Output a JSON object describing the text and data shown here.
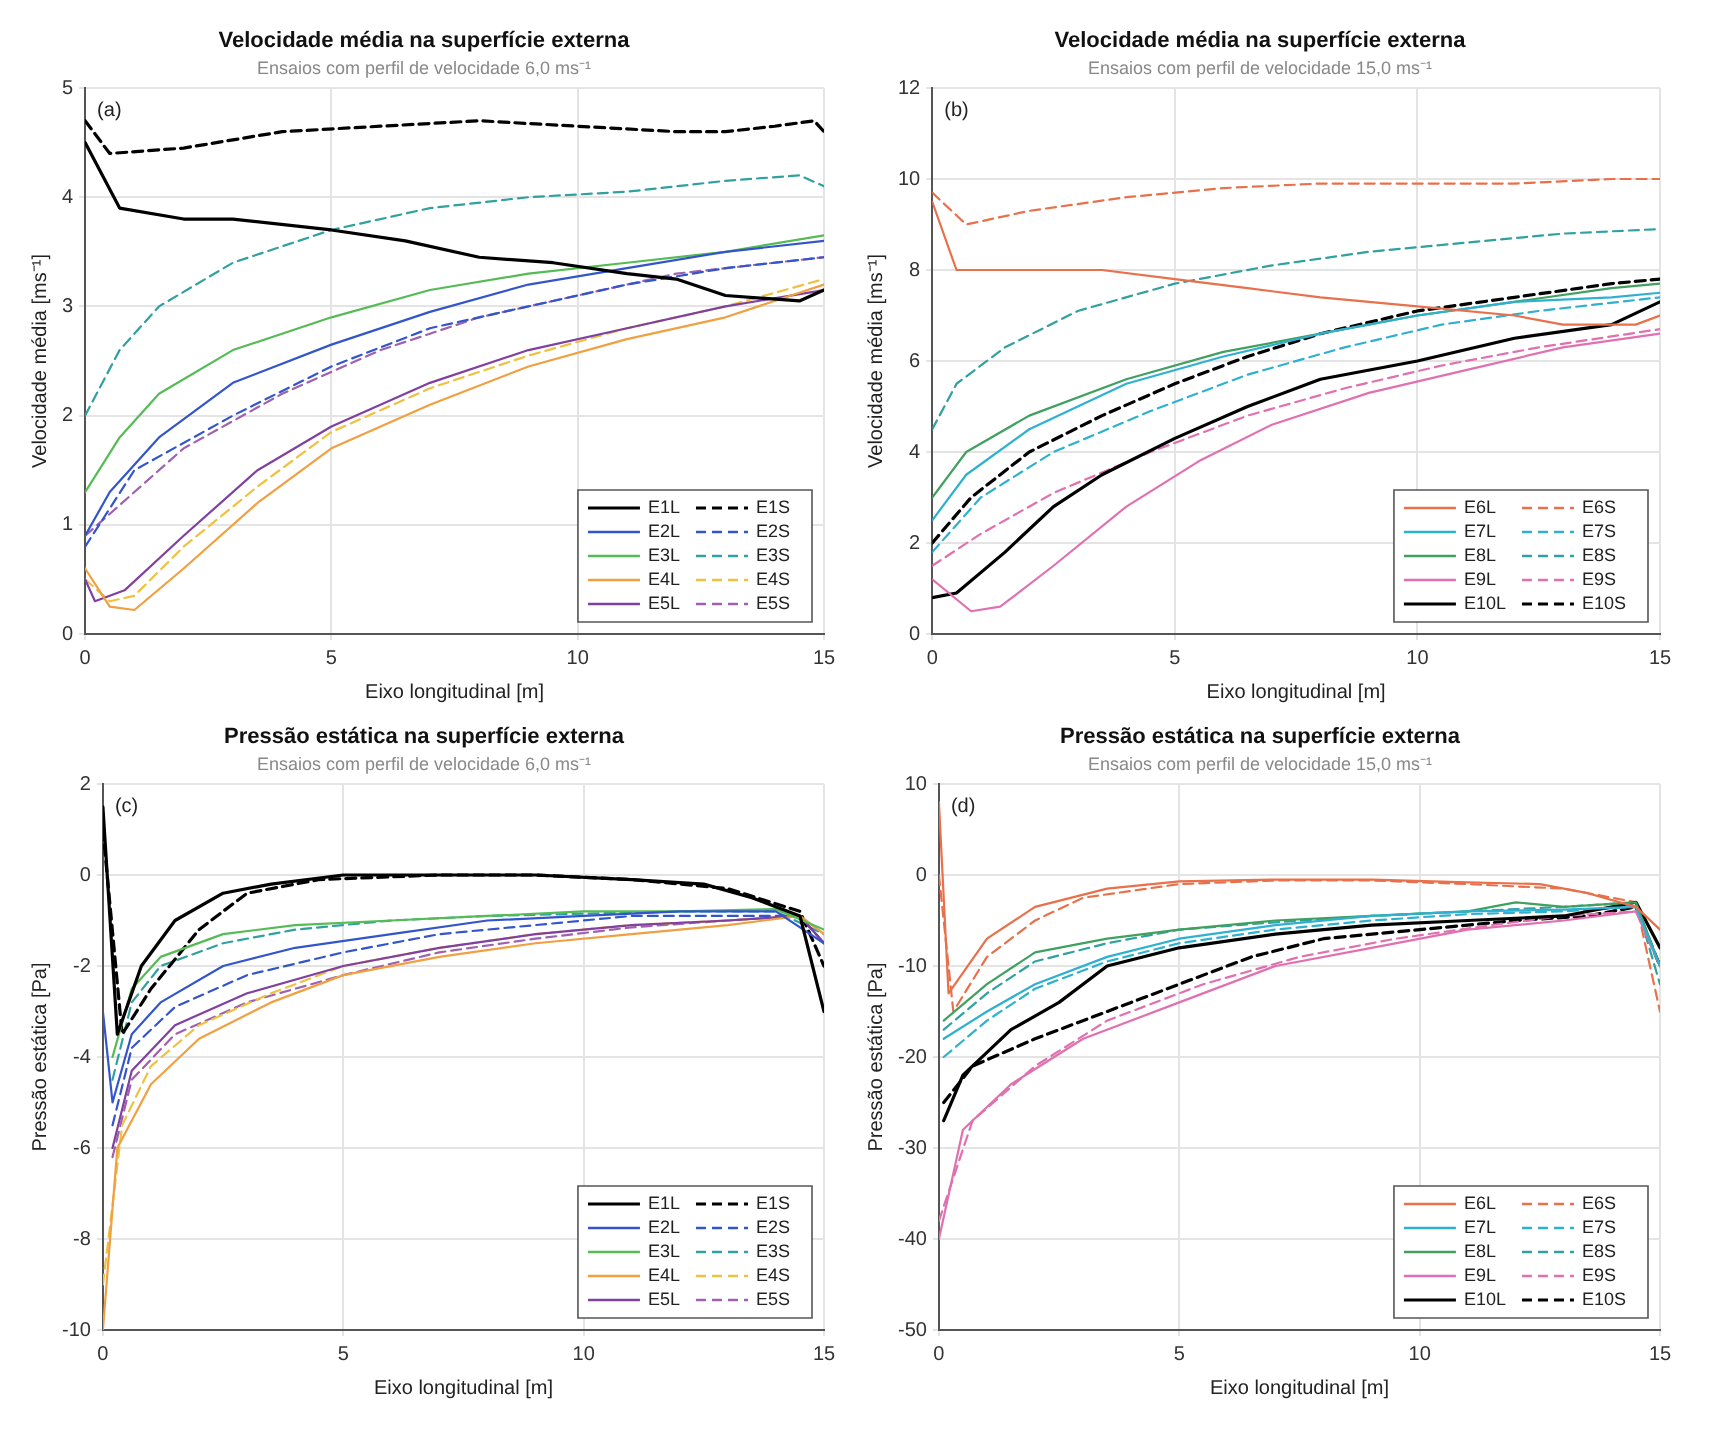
{
  "chart_data": [
    {
      "type": "line",
      "title": "Velocidade média na superfície externa",
      "subtitle": "Ensaios com perfil de velocidade 6,0 ms⁻¹",
      "xlabel": "Eixo longitudinal [m]",
      "ylabel": "Velocidade média [ms⁻¹]",
      "annotations": [
        "(a)"
      ],
      "xlim": [
        0,
        15
      ],
      "xticks": [
        0,
        5,
        10,
        15
      ],
      "ylim": [
        0,
        5
      ],
      "yticks": [
        0,
        1,
        2,
        3,
        4,
        5
      ],
      "grid": true,
      "legend": "bottom right",
      "series": [
        {
          "name": "E1L",
          "color": "#000000",
          "line_style": "solid",
          "x": [
            0,
            0.7,
            2,
            3,
            5,
            6.5,
            8,
            9.5,
            11,
            12,
            13,
            14.5,
            15
          ],
          "values": [
            4.5,
            3.9,
            3.8,
            3.8,
            3.7,
            3.6,
            3.45,
            3.4,
            3.3,
            3.25,
            3.1,
            3.05,
            3.15
          ]
        },
        {
          "name": "E2L",
          "color": "#3355cc",
          "line_style": "solid",
          "x": [
            0,
            0.5,
            1.5,
            3,
            5,
            7,
            9,
            11,
            13,
            15
          ],
          "values": [
            0.9,
            1.3,
            1.8,
            2.3,
            2.65,
            2.95,
            3.2,
            3.35,
            3.5,
            3.6
          ]
        },
        {
          "name": "E3L",
          "color": "#55bb55",
          "line_style": "solid",
          "x": [
            0,
            0.7,
            1.5,
            3,
            5,
            7,
            9,
            11,
            13,
            15
          ],
          "values": [
            1.3,
            1.8,
            2.2,
            2.6,
            2.9,
            3.15,
            3.3,
            3.4,
            3.5,
            3.65
          ]
        },
        {
          "name": "E4L",
          "color": "#f0a040",
          "line_style": "solid",
          "x": [
            0,
            0.5,
            1,
            2,
            3.5,
            5,
            7,
            9,
            11,
            13,
            15
          ],
          "values": [
            0.6,
            0.25,
            0.22,
            0.6,
            1.2,
            1.7,
            2.1,
            2.45,
            2.7,
            2.9,
            3.2
          ]
        },
        {
          "name": "E5L",
          "color": "#8040a0",
          "line_style": "solid",
          "x": [
            0,
            0.2,
            0.8,
            2,
            3.5,
            5,
            7,
            9,
            11,
            13,
            15
          ],
          "values": [
            0.5,
            0.3,
            0.4,
            0.9,
            1.5,
            1.9,
            2.3,
            2.6,
            2.8,
            3.0,
            3.15
          ]
        },
        {
          "name": "E1S",
          "color": "#000000",
          "line_style": "dashed",
          "x": [
            0,
            0.5,
            2,
            4,
            6,
            8,
            10,
            12,
            13,
            14,
            14.8,
            15
          ],
          "values": [
            4.7,
            4.4,
            4.45,
            4.6,
            4.65,
            4.7,
            4.65,
            4.6,
            4.6,
            4.65,
            4.7,
            4.6
          ]
        },
        {
          "name": "E2S",
          "color": "#3355cc",
          "line_style": "dashed",
          "x": [
            0,
            1,
            3,
            5,
            7,
            9,
            11,
            13,
            15
          ],
          "values": [
            0.8,
            1.5,
            2.0,
            2.45,
            2.8,
            3.0,
            3.2,
            3.35,
            3.45
          ]
        },
        {
          "name": "E3S",
          "color": "#30a0a0",
          "line_style": "dashed",
          "x": [
            0,
            0.7,
            1.5,
            3,
            5,
            7,
            9,
            11,
            13,
            14.5,
            15
          ],
          "values": [
            2.0,
            2.6,
            3.0,
            3.4,
            3.7,
            3.9,
            4.0,
            4.05,
            4.15,
            4.2,
            4.1
          ]
        },
        {
          "name": "E4S",
          "color": "#f0c040",
          "line_style": "dashed",
          "x": [
            0,
            0.5,
            1,
            2,
            3.5,
            5,
            7,
            9,
            11,
            13,
            15
          ],
          "values": [
            0.5,
            0.3,
            0.35,
            0.8,
            1.35,
            1.85,
            2.25,
            2.55,
            2.8,
            3.0,
            3.25
          ]
        },
        {
          "name": "E5S",
          "color": "#a060b0",
          "line_style": "dashed",
          "x": [
            0,
            1,
            2,
            4,
            6,
            8,
            10,
            12,
            15
          ],
          "values": [
            0.9,
            1.3,
            1.7,
            2.2,
            2.6,
            2.9,
            3.1,
            3.3,
            3.45
          ]
        }
      ]
    },
    {
      "type": "line",
      "title": "Velocidade média na superfície externa",
      "subtitle": "Ensaios com perfil de velocidade 15,0 ms⁻¹",
      "xlabel": "Eixo longitudinal [m]",
      "ylabel": "Velocidade média [ms⁻¹]",
      "annotations": [
        "(b)"
      ],
      "xlim": [
        0,
        15
      ],
      "xticks": [
        0,
        5,
        10,
        15
      ],
      "ylim": [
        0,
        12
      ],
      "yticks": [
        0,
        2,
        4,
        6,
        8,
        10,
        12
      ],
      "grid": true,
      "legend": "bottom right",
      "series": [
        {
          "name": "E6L",
          "color": "#e8704a",
          "line_style": "solid",
          "x": [
            0,
            0.5,
            2,
            3.5,
            5,
            6.5,
            8,
            10,
            12,
            13,
            14.5,
            15
          ],
          "values": [
            9.5,
            8.0,
            8.0,
            8.0,
            7.8,
            7.6,
            7.4,
            7.2,
            7.0,
            6.8,
            6.8,
            7.0
          ]
        },
        {
          "name": "E7L",
          "color": "#30b0d0",
          "line_style": "solid",
          "x": [
            0,
            0.7,
            2,
            4,
            6,
            8,
            10,
            12,
            14,
            15
          ],
          "values": [
            2.5,
            3.5,
            4.5,
            5.5,
            6.1,
            6.6,
            7.0,
            7.3,
            7.4,
            7.5
          ]
        },
        {
          "name": "E8L",
          "color": "#40a060",
          "line_style": "solid",
          "x": [
            0,
            0.7,
            2,
            4,
            6,
            8,
            10,
            12,
            14,
            15
          ],
          "values": [
            3.0,
            4.0,
            4.8,
            5.6,
            6.2,
            6.6,
            7.0,
            7.3,
            7.6,
            7.7
          ]
        },
        {
          "name": "E9L",
          "color": "#e070b0",
          "line_style": "solid",
          "x": [
            0,
            0.8,
            1.4,
            2.5,
            4,
            5.5,
            7,
            9,
            11,
            13,
            15
          ],
          "values": [
            1.2,
            0.5,
            0.6,
            1.5,
            2.8,
            3.8,
            4.6,
            5.3,
            5.8,
            6.3,
            6.6
          ]
        },
        {
          "name": "E10L",
          "color": "#000000",
          "line_style": "solid",
          "x": [
            0,
            0.5,
            1.5,
            2.5,
            3.5,
            5,
            6.5,
            8,
            10,
            12,
            14,
            15
          ],
          "values": [
            0.8,
            0.9,
            1.8,
            2.8,
            3.5,
            4.3,
            5.0,
            5.6,
            6.0,
            6.5,
            6.8,
            7.3
          ]
        },
        {
          "name": "E6S",
          "color": "#e8704a",
          "line_style": "dashed",
          "x": [
            0,
            0.7,
            2,
            4,
            6,
            8,
            10,
            12,
            14,
            15
          ],
          "values": [
            9.7,
            9.0,
            9.3,
            9.6,
            9.8,
            9.9,
            9.9,
            9.9,
            10.0,
            10.0
          ]
        },
        {
          "name": "E7S",
          "color": "#30b0d0",
          "line_style": "dashed",
          "x": [
            0,
            1,
            2.5,
            4.5,
            6.5,
            8.5,
            10.5,
            12.5,
            15
          ],
          "values": [
            1.8,
            3.0,
            4.0,
            4.9,
            5.7,
            6.3,
            6.8,
            7.1,
            7.4
          ]
        },
        {
          "name": "E8S",
          "color": "#30a0a0",
          "line_style": "dashed",
          "x": [
            0,
            0.5,
            1.5,
            3,
            5,
            7,
            9,
            11,
            13,
            15
          ],
          "values": [
            4.5,
            5.5,
            6.3,
            7.1,
            7.7,
            8.1,
            8.4,
            8.6,
            8.8,
            8.9
          ]
        },
        {
          "name": "E9S",
          "color": "#e070b0",
          "line_style": "dashed",
          "x": [
            0,
            1,
            2.5,
            4.5,
            6.5,
            8.5,
            10.5,
            12.5,
            15
          ],
          "values": [
            1.5,
            2.2,
            3.1,
            4.0,
            4.8,
            5.4,
            5.9,
            6.3,
            6.7
          ]
        },
        {
          "name": "E10S",
          "color": "#000000",
          "line_style": "dashed",
          "x": [
            0,
            0.8,
            2,
            3.5,
            5,
            6.5,
            8,
            10,
            12,
            14,
            15
          ],
          "values": [
            2.0,
            3.0,
            4.0,
            4.8,
            5.5,
            6.1,
            6.6,
            7.1,
            7.4,
            7.7,
            7.8
          ]
        }
      ]
    },
    {
      "type": "line",
      "title": "Pressão estática na superfície externa",
      "subtitle": "Ensaios com perfil de velocidade 6,0 ms⁻¹",
      "xlabel": "Eixo longitudinal [m]",
      "ylabel": "Pressão estática [Pa]",
      "annotations": [
        "(c)"
      ],
      "xlim": [
        0,
        15
      ],
      "xticks": [
        0,
        5,
        10,
        15
      ],
      "ylim": [
        -10,
        2
      ],
      "yticks": [
        -10,
        -8,
        -6,
        -4,
        -2,
        0,
        2
      ],
      "grid": true,
      "legend": "bottom right",
      "series": [
        {
          "name": "E1L",
          "color": "#000000",
          "line_style": "solid",
          "x": [
            0,
            0.3,
            0.8,
            1.5,
            2.5,
            3.5,
            5,
            7,
            9,
            11,
            12.5,
            13.5,
            14.5,
            15
          ],
          "values": [
            1.5,
            -3.5,
            -2.0,
            -1.0,
            -0.4,
            -0.2,
            0,
            0,
            0,
            -0.1,
            -0.2,
            -0.5,
            -0.9,
            -3.0
          ]
        },
        {
          "name": "E2L",
          "color": "#3355cc",
          "line_style": "solid",
          "x": [
            0,
            0.2,
            0.6,
            1.2,
            2.5,
            4,
            6,
            8,
            10,
            12,
            14,
            15
          ],
          "values": [
            -3,
            -5,
            -3.5,
            -2.8,
            -2.0,
            -1.6,
            -1.3,
            -1.0,
            -0.9,
            -0.8,
            -0.8,
            -1.5
          ]
        },
        {
          "name": "E3L",
          "color": "#55bb55",
          "line_style": "solid",
          "x": [
            0.2,
            0.6,
            1.2,
            2.5,
            4,
            6,
            8,
            10,
            12,
            14,
            15
          ],
          "values": [
            -4,
            -2.5,
            -1.8,
            -1.3,
            -1.1,
            -1.0,
            -0.9,
            -0.8,
            -0.8,
            -0.75,
            -1.2
          ]
        },
        {
          "name": "E4L",
          "color": "#f0a040",
          "line_style": "solid",
          "x": [
            0,
            0.3,
            1,
            2,
            3.5,
            5,
            7,
            9,
            11,
            13,
            14.5,
            15
          ],
          "values": [
            -10,
            -6,
            -4.6,
            -3.6,
            -2.8,
            -2.2,
            -1.8,
            -1.5,
            -1.3,
            -1.1,
            -0.9,
            -1.3
          ]
        },
        {
          "name": "E5L",
          "color": "#8040a0",
          "line_style": "solid",
          "x": [
            0.2,
            0.6,
            1.5,
            3,
            5,
            7,
            9,
            11,
            13,
            14.5,
            15
          ],
          "values": [
            -6,
            -4.3,
            -3.3,
            -2.6,
            -2.0,
            -1.6,
            -1.3,
            -1.1,
            -1.0,
            -0.9,
            -1.5
          ]
        },
        {
          "name": "E1S",
          "color": "#000000",
          "line_style": "dashed",
          "x": [
            0,
            0.4,
            1,
            2,
            3,
            4.5,
            7,
            9,
            11,
            13,
            14.5,
            15
          ],
          "values": [
            1.0,
            -3.5,
            -2.5,
            -1.2,
            -0.4,
            -0.1,
            0,
            0,
            -0.1,
            -0.3,
            -0.8,
            -2.0
          ]
        },
        {
          "name": "E2S",
          "color": "#3355cc",
          "line_style": "dashed",
          "x": [
            0.2,
            0.6,
            1.5,
            3,
            5,
            7,
            9,
            11,
            13,
            14.5,
            15
          ],
          "values": [
            -5.5,
            -3.8,
            -2.9,
            -2.2,
            -1.7,
            -1.3,
            -1.1,
            -0.9,
            -0.9,
            -0.9,
            -1.5
          ]
        },
        {
          "name": "E3S",
          "color": "#30a0a0",
          "line_style": "dashed",
          "x": [
            0.2,
            0.6,
            1.2,
            2.5,
            4,
            6,
            8,
            10,
            12,
            14,
            15
          ],
          "values": [
            -4.5,
            -2.8,
            -2.0,
            -1.5,
            -1.2,
            -1.0,
            -0.9,
            -0.85,
            -0.8,
            -0.8,
            -1.3
          ]
        },
        {
          "name": "E4S",
          "color": "#f0c040",
          "line_style": "dashed",
          "x": [
            0,
            0.4,
            1,
            2,
            3.5,
            5,
            7,
            9,
            11,
            13,
            14.5,
            15
          ],
          "values": [
            -9,
            -5.5,
            -4.2,
            -3.3,
            -2.6,
            -2.0,
            -1.6,
            -1.3,
            -1.1,
            -1.0,
            -0.9,
            -1.3
          ]
        },
        {
          "name": "E5S",
          "color": "#a060b0",
          "line_style": "dashed",
          "x": [
            0.2,
            0.6,
            1.5,
            3,
            5,
            7,
            9,
            11,
            13,
            14.5,
            15
          ],
          "values": [
            -6.2,
            -4.5,
            -3.5,
            -2.8,
            -2.2,
            -1.7,
            -1.4,
            -1.15,
            -1.0,
            -0.9,
            -1.5
          ]
        }
      ]
    },
    {
      "type": "line",
      "title": "Pressão estática na superfície externa",
      "subtitle": "Ensaios com perfil de velocidade 15,0 ms⁻¹",
      "xlabel": "Eixo longitudinal [m]",
      "ylabel": "Pressão estática [Pa]",
      "annotations": [
        "(d)"
      ],
      "xlim": [
        0,
        15
      ],
      "xticks": [
        0,
        5,
        10,
        15
      ],
      "ylim": [
        -50,
        10
      ],
      "yticks": [
        -50,
        -40,
        -30,
        -20,
        -10,
        0,
        10
      ],
      "grid": true,
      "legend": "bottom right",
      "series": [
        {
          "name": "E6L",
          "color": "#e8704a",
          "line_style": "solid",
          "x": [
            0,
            0.2,
            1,
            2,
            3.5,
            5,
            7,
            9,
            11,
            12.5,
            13.5,
            14.5,
            15
          ],
          "values": [
            8,
            -13,
            -7,
            -3.5,
            -1.5,
            -0.7,
            -0.5,
            -0.5,
            -0.8,
            -1.0,
            -2,
            -3.5,
            -6
          ]
        },
        {
          "name": "E7L",
          "color": "#30b0d0",
          "line_style": "solid",
          "x": [
            0.1,
            1,
            2,
            3.5,
            5,
            7,
            9,
            11,
            13,
            14.5,
            15
          ],
          "values": [
            -18,
            -15,
            -12,
            -9,
            -7,
            -5.5,
            -4.5,
            -4,
            -3.8,
            -3.5,
            -10
          ]
        },
        {
          "name": "E8L",
          "color": "#40a060",
          "line_style": "solid",
          "x": [
            0.1,
            1,
            2,
            3.5,
            5,
            7,
            9,
            11,
            12,
            13,
            14.5,
            15
          ],
          "values": [
            -16,
            -12,
            -8.5,
            -7,
            -6,
            -5,
            -4.5,
            -4,
            -3,
            -3.5,
            -3,
            -10
          ]
        },
        {
          "name": "E9L",
          "color": "#e070b0",
          "line_style": "solid",
          "x": [
            0,
            0.5,
            1.5,
            3,
            5,
            7,
            9,
            11,
            13,
            14.5,
            15
          ],
          "values": [
            -40,
            -28,
            -23,
            -18,
            -14,
            -10,
            -8,
            -6,
            -5,
            -4,
            -10
          ]
        },
        {
          "name": "E10L",
          "color": "#000000",
          "line_style": "solid",
          "x": [
            0.1,
            0.5,
            1.5,
            2.5,
            3.5,
            5,
            7,
            9,
            11,
            13,
            14.5,
            15
          ],
          "values": [
            -27,
            -22,
            -17,
            -14,
            -10,
            -8,
            -6.5,
            -5.5,
            -5,
            -4.5,
            -3,
            -8
          ]
        },
        {
          "name": "E6S",
          "color": "#e8704a",
          "line_style": "dashed",
          "x": [
            0,
            0.3,
            1,
            2,
            3,
            5,
            7,
            9,
            11,
            13,
            14.5,
            15
          ],
          "values": [
            0,
            -15,
            -9,
            -5,
            -2.5,
            -1,
            -0.6,
            -0.6,
            -1,
            -1.5,
            -3,
            -15
          ]
        },
        {
          "name": "E7S",
          "color": "#30b0d0",
          "line_style": "dashed",
          "x": [
            0.1,
            1,
            2,
            3.5,
            5,
            7,
            9,
            11,
            13,
            14.5,
            15
          ],
          "values": [
            -20,
            -16,
            -12.5,
            -9.5,
            -7.5,
            -6,
            -5,
            -4.3,
            -4,
            -3.5,
            -10
          ]
        },
        {
          "name": "E8S",
          "color": "#30a0a0",
          "line_style": "dashed",
          "x": [
            0.1,
            1,
            2,
            3.5,
            5,
            7,
            9,
            11,
            13,
            14.5,
            15
          ],
          "values": [
            -17,
            -13,
            -9.5,
            -7.5,
            -6,
            -5.2,
            -4.5,
            -4,
            -3.5,
            -3,
            -12
          ]
        },
        {
          "name": "E9S",
          "color": "#e070b0",
          "line_style": "dashed",
          "x": [
            0,
            0.7,
            2,
            3.5,
            5.5,
            7.5,
            9.5,
            11.5,
            13,
            14.5,
            15
          ],
          "values": [
            -38,
            -27,
            -21,
            -16,
            -12,
            -9,
            -7,
            -5.5,
            -4.5,
            -4,
            -10
          ]
        },
        {
          "name": "E10S",
          "color": "#000000",
          "line_style": "dashed",
          "x": [
            0.1,
            0.7,
            2,
            3.5,
            5,
            6.5,
            8,
            10,
            12,
            13.5,
            14.5,
            15
          ],
          "values": [
            -25,
            -21,
            -18,
            -15,
            -12,
            -9,
            -7,
            -6,
            -5,
            -4.5,
            -3.5,
            -10
          ]
        }
      ]
    }
  ]
}
